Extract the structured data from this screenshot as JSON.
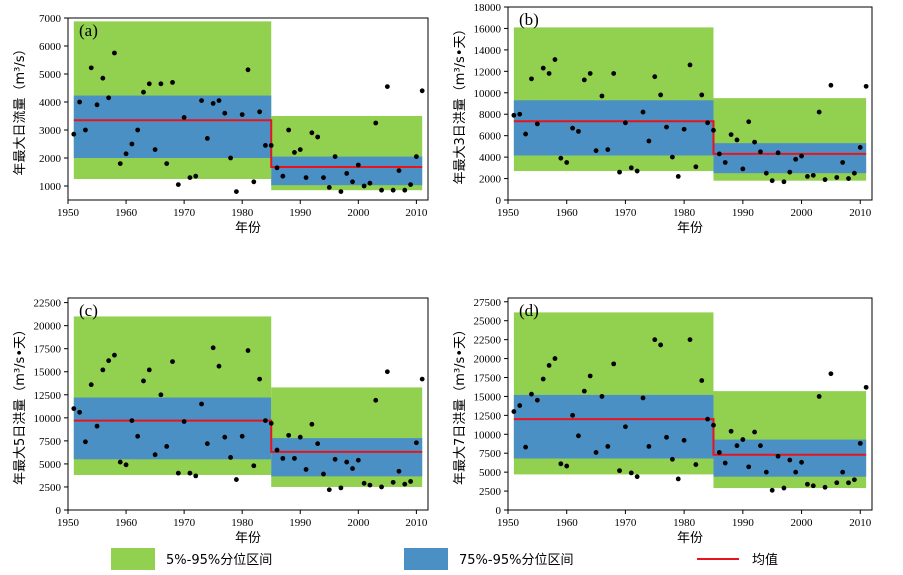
{
  "chart_data": [
    {
      "type": "scatter",
      "panel_label": "(a)",
      "ylabel": "年最大日流量（m³/s）",
      "xlabel": "年份",
      "xlim": [
        1950,
        2012
      ],
      "ylim": [
        500,
        7000
      ],
      "xticks": [
        1950,
        1960,
        1970,
        1980,
        1990,
        2000,
        2010
      ],
      "yticks": [
        1000,
        2000,
        3000,
        4000,
        5000,
        6000,
        7000
      ],
      "ytick_labels": [
        "1000",
        "2000",
        "3000",
        "4000",
        "5000",
        "6000",
        "7000"
      ],
      "periods": [
        {
          "start": 1951,
          "end": 1985,
          "p5": 1250,
          "p95": 6880,
          "p75": 4230,
          "q_low": 2000,
          "mean": 3350
        },
        {
          "start": 1985,
          "end": 2011,
          "p5": 850,
          "p95": 3500,
          "p75": 2050,
          "q_low": 1030,
          "mean": 1680
        }
      ],
      "x": [
        1951,
        1952,
        1953,
        1954,
        1955,
        1956,
        1957,
        1958,
        1959,
        1960,
        1961,
        1962,
        1963,
        1964,
        1965,
        1966,
        1967,
        1968,
        1969,
        1970,
        1971,
        1972,
        1973,
        1974,
        1975,
        1976,
        1977,
        1978,
        1979,
        1980,
        1981,
        1982,
        1983,
        1984,
        1985,
        1986,
        1987,
        1988,
        1989,
        1990,
        1991,
        1992,
        1993,
        1994,
        1995,
        1996,
        1997,
        1998,
        1999,
        2000,
        2001,
        2002,
        2003,
        2004,
        2005,
        2006,
        2007,
        2008,
        2009,
        2010,
        2011
      ],
      "y": [
        2850,
        4000,
        3000,
        5220,
        3900,
        4850,
        4150,
        5750,
        1800,
        2150,
        2500,
        3000,
        4350,
        4650,
        2300,
        4650,
        1800,
        4700,
        1050,
        3450,
        1300,
        1350,
        4050,
        2700,
        3950,
        4050,
        3600,
        2000,
        800,
        3550,
        5150,
        1150,
        3650,
        2450,
        2450,
        1650,
        1350,
        3000,
        2200,
        2300,
        1300,
        2900,
        2750,
        1300,
        950,
        2050,
        800,
        1450,
        1150,
        1750,
        1000,
        1100,
        3250,
        850,
        4550,
        850,
        1550,
        850,
        1050,
        2050,
        4400
      ]
    },
    {
      "type": "scatter",
      "panel_label": "(b)",
      "ylabel": "年最大3日洪量（m³/s•天）",
      "xlabel": "年份",
      "xlim": [
        1950,
        2012
      ],
      "ylim": [
        0,
        18000
      ],
      "xticks": [
        1950,
        1960,
        1970,
        1980,
        1990,
        2000,
        2010
      ],
      "yticks": [
        0,
        2000,
        4000,
        6000,
        8000,
        10000,
        12000,
        14000,
        16000,
        18000
      ],
      "ytick_labels": [
        "0",
        "2000",
        "4000",
        "6000",
        "8000",
        "10000",
        "12000",
        "14000",
        "16000",
        "18000"
      ],
      "periods": [
        {
          "start": 1951,
          "end": 1985,
          "p5": 2700,
          "p95": 16100,
          "p75": 9300,
          "q_low": 4150,
          "mean": 7350
        },
        {
          "start": 1985,
          "end": 2011,
          "p5": 1800,
          "p95": 9500,
          "p75": 5300,
          "q_low": 2500,
          "mean": 4300
        }
      ],
      "x": [
        1951,
        1952,
        1953,
        1954,
        1955,
        1956,
        1957,
        1958,
        1959,
        1960,
        1961,
        1962,
        1963,
        1964,
        1965,
        1966,
        1967,
        1968,
        1969,
        1970,
        1971,
        1972,
        1973,
        1974,
        1975,
        1976,
        1977,
        1978,
        1979,
        1980,
        1981,
        1982,
        1983,
        1984,
        1985,
        1986,
        1987,
        1988,
        1989,
        1990,
        1991,
        1992,
        1993,
        1994,
        1995,
        1996,
        1997,
        1998,
        1999,
        2000,
        2001,
        2002,
        2003,
        2004,
        2005,
        2006,
        2007,
        2008,
        2009,
        2010,
        2011
      ],
      "y": [
        7900,
        8000,
        6150,
        11300,
        7100,
        12300,
        11800,
        13100,
        3900,
        3500,
        6700,
        6400,
        11200,
        11800,
        4600,
        9700,
        4700,
        11800,
        2600,
        7200,
        3000,
        2700,
        8200,
        5500,
        11500,
        9800,
        6800,
        4000,
        2200,
        6600,
        12600,
        3100,
        9800,
        7200,
        6500,
        4300,
        3500,
        6100,
        5600,
        2900,
        7300,
        5400,
        4500,
        2500,
        1800,
        4400,
        1700,
        2600,
        3800,
        4100,
        2200,
        2300,
        8200,
        1900,
        10700,
        2100,
        3500,
        2000,
        2500,
        4900,
        10600
      ]
    },
    {
      "type": "scatter",
      "panel_label": "(c)",
      "ylabel": "年最大5日洪量（m³/s•天）",
      "xlabel": "年份",
      "xlim": [
        1950,
        2012
      ],
      "ylim": [
        0,
        23000
      ],
      "xticks": [
        1950,
        1960,
        1970,
        1980,
        1990,
        2000,
        2010
      ],
      "yticks": [
        0,
        2500,
        5000,
        7500,
        10000,
        12500,
        15000,
        17500,
        20000,
        22500
      ],
      "ytick_labels": [
        "0",
        "2500",
        "5000",
        "7500",
        "10000",
        "12500",
        "15000",
        "17500",
        "20000",
        "22500"
      ],
      "periods": [
        {
          "start": 1951,
          "end": 1985,
          "p5": 3800,
          "p95": 21000,
          "p75": 12200,
          "q_low": 5500,
          "mean": 9700
        },
        {
          "start": 1985,
          "end": 2011,
          "p5": 2500,
          "p95": 13300,
          "p75": 7800,
          "q_low": 3650,
          "mean": 6300
        }
      ],
      "x": [
        1951,
        1952,
        1953,
        1954,
        1955,
        1956,
        1957,
        1958,
        1959,
        1960,
        1961,
        1962,
        1963,
        1964,
        1965,
        1966,
        1967,
        1968,
        1969,
        1970,
        1971,
        1972,
        1973,
        1974,
        1975,
        1976,
        1977,
        1978,
        1979,
        1980,
        1981,
        1982,
        1983,
        1984,
        1985,
        1986,
        1987,
        1988,
        1989,
        1990,
        1991,
        1992,
        1993,
        1994,
        1995,
        1996,
        1997,
        1998,
        1999,
        2000,
        2001,
        2002,
        2003,
        2004,
        2005,
        2006,
        2007,
        2008,
        2009,
        2010,
        2011
      ],
      "y": [
        11000,
        10600,
        7400,
        13600,
        9100,
        15200,
        16200,
        16800,
        5200,
        4900,
        9700,
        8000,
        14000,
        15200,
        6000,
        12500,
        6900,
        16100,
        4000,
        9600,
        4000,
        3700,
        11500,
        7200,
        17600,
        15600,
        7900,
        5700,
        3300,
        8000,
        17300,
        4800,
        14200,
        9700,
        9400,
        6500,
        5600,
        8100,
        5600,
        7900,
        4400,
        9300,
        7200,
        3900,
        2200,
        5500,
        2400,
        5200,
        4500,
        5400,
        2900,
        2700,
        11900,
        2500,
        15000,
        3000,
        4200,
        2800,
        3100,
        7300,
        14200
      ]
    },
    {
      "type": "scatter",
      "panel_label": "(d)",
      "ylabel": "年最大7日洪量（m³/s•天）",
      "xlabel": "年份",
      "xlim": [
        1950,
        2012
      ],
      "ylim": [
        0,
        28000
      ],
      "xticks": [
        1950,
        1960,
        1970,
        1980,
        1990,
        2000,
        2010
      ],
      "yticks": [
        0,
        2500,
        5000,
        7500,
        10000,
        12500,
        15000,
        17500,
        20000,
        22500,
        25000,
        27500
      ],
      "ytick_labels": [
        "0",
        "2500",
        "5000",
        "7500",
        "10000",
        "12500",
        "15000",
        "17500",
        "20000",
        "22500",
        "25000",
        "27500"
      ],
      "periods": [
        {
          "start": 1951,
          "end": 1985,
          "p5": 4700,
          "p95": 26100,
          "p75": 15200,
          "q_low": 6800,
          "mean": 12000
        },
        {
          "start": 1985,
          "end": 2011,
          "p5": 2900,
          "p95": 15700,
          "p75": 9300,
          "q_low": 4400,
          "mean": 7300
        }
      ],
      "x": [
        1951,
        1952,
        1953,
        1954,
        1955,
        1956,
        1957,
        1958,
        1959,
        1960,
        1961,
        1962,
        1963,
        1964,
        1965,
        1966,
        1967,
        1968,
        1969,
        1970,
        1971,
        1972,
        1973,
        1974,
        1975,
        1976,
        1977,
        1978,
        1979,
        1980,
        1981,
        1982,
        1983,
        1984,
        1985,
        1986,
        1987,
        1988,
        1989,
        1990,
        1991,
        1992,
        1993,
        1994,
        1995,
        1996,
        1997,
        1998,
        1999,
        2000,
        2001,
        2002,
        2003,
        2004,
        2005,
        2006,
        2007,
        2008,
        2009,
        2010,
        2011
      ],
      "y": [
        13000,
        13800,
        8300,
        15300,
        14500,
        17300,
        19100,
        20000,
        6100,
        5800,
        12500,
        9800,
        15700,
        17700,
        7600,
        15000,
        8400,
        19300,
        5200,
        11000,
        4900,
        4400,
        14800,
        8400,
        22500,
        21800,
        9600,
        6700,
        4100,
        9200,
        22500,
        6000,
        17100,
        12000,
        11200,
        7600,
        6200,
        10400,
        8500,
        9300,
        5700,
        10300,
        8500,
        5000,
        2600,
        7100,
        2900,
        6600,
        5000,
        6300,
        3400,
        3200,
        15000,
        3000,
        18000,
        3600,
        5000,
        3600,
        4000,
        8800,
        16200
      ]
    }
  ],
  "legend": {
    "band_90_label": "5%-95%分位区间",
    "band_75_label": "75%-95%分位区间",
    "mean_label": "均值"
  },
  "colors": {
    "green": "#92d050",
    "blue": "#4a90c4",
    "mean": "#e8141c",
    "point": "#000000"
  }
}
